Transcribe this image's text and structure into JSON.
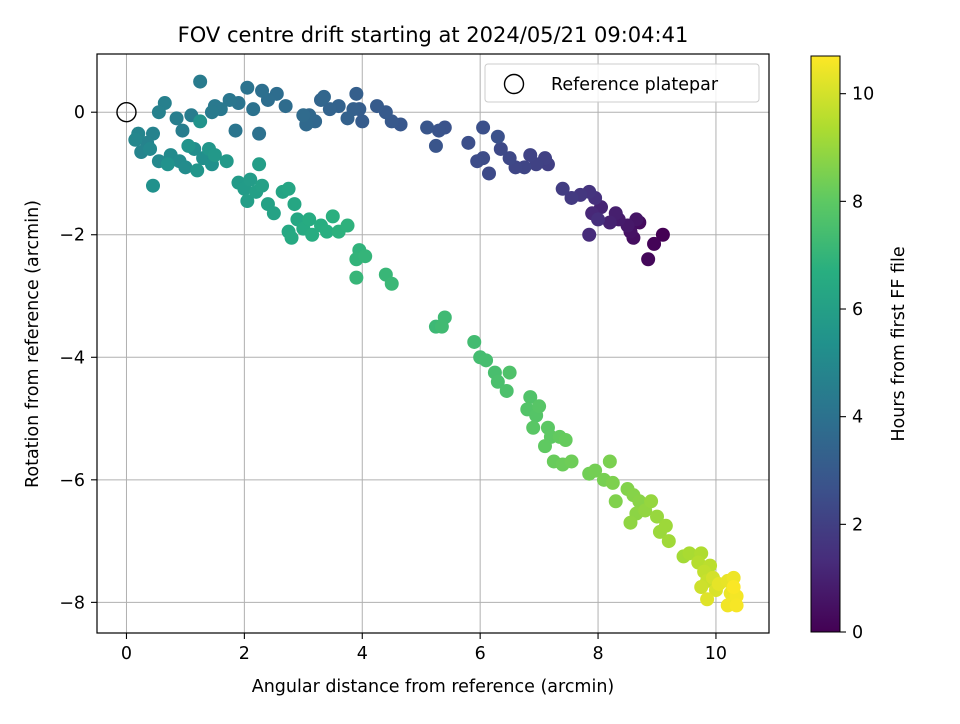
{
  "chart_data": {
    "type": "scatter",
    "title": "FOV centre drift starting at 2024/05/21 09:04:41",
    "xlabel": "Angular distance from reference (arcmin)",
    "ylabel": "Rotation from reference (arcmin)",
    "xlim": [
      -0.5,
      10.9
    ],
    "ylim": [
      -8.5,
      0.95
    ],
    "xticks": [
      0,
      2,
      4,
      6,
      8,
      10
    ],
    "yticks": [
      0,
      -2,
      -4,
      -6,
      -8
    ],
    "grid": true,
    "legend": {
      "location": "upper-right",
      "entries": [
        "Reference platepar"
      ]
    },
    "reference_point": {
      "x": 0,
      "y": 0,
      "label": "Reference platepar"
    },
    "colorbar": {
      "label": "Hours from first FF file",
      "colormap": "viridis",
      "range": [
        0,
        10.7
      ],
      "ticks": [
        0,
        2,
        4,
        6,
        8,
        10
      ]
    },
    "series": [
      {
        "points": [
          [
            9.1,
            -2.0,
            0.0
          ],
          [
            8.95,
            -2.15,
            0.1
          ],
          [
            8.85,
            -2.4,
            0.2
          ],
          [
            8.7,
            -1.8,
            0.3
          ],
          [
            8.6,
            -2.05,
            0.4
          ],
          [
            8.55,
            -1.95,
            0.5
          ],
          [
            8.65,
            -1.75,
            0.6
          ],
          [
            8.5,
            -1.85,
            0.7
          ],
          [
            8.35,
            -1.75,
            0.8
          ],
          [
            8.3,
            -1.65,
            0.9
          ],
          [
            8.2,
            -1.8,
            1.0
          ],
          [
            8.05,
            -1.55,
            1.1
          ],
          [
            7.9,
            -1.65,
            1.2
          ],
          [
            7.85,
            -2.0,
            1.3
          ],
          [
            8.0,
            -1.75,
            1.4
          ],
          [
            7.95,
            -1.4,
            1.5
          ],
          [
            7.85,
            -1.3,
            1.6
          ],
          [
            7.7,
            -1.35,
            1.7
          ],
          [
            7.55,
            -1.4,
            1.8
          ],
          [
            7.4,
            -1.25,
            1.9
          ],
          [
            7.15,
            -0.85,
            2.0
          ],
          [
            7.1,
            -0.75,
            2.05
          ],
          [
            6.95,
            -0.85,
            2.1
          ],
          [
            6.85,
            -0.7,
            2.15
          ],
          [
            6.75,
            -0.9,
            2.2
          ],
          [
            6.6,
            -0.9,
            2.25
          ],
          [
            6.5,
            -0.75,
            2.3
          ],
          [
            6.35,
            -0.6,
            2.35
          ],
          [
            6.15,
            -1.0,
            2.4
          ],
          [
            6.05,
            -0.75,
            2.45
          ],
          [
            5.95,
            -0.8,
            2.5
          ],
          [
            5.8,
            -0.5,
            2.55
          ],
          [
            6.05,
            -0.25,
            2.6
          ],
          [
            6.3,
            -0.4,
            2.65
          ],
          [
            5.4,
            -0.25,
            2.7
          ],
          [
            5.3,
            -0.3,
            2.75
          ],
          [
            5.25,
            -0.55,
            2.8
          ],
          [
            5.1,
            -0.25,
            2.85
          ],
          [
            4.65,
            -0.2,
            2.9
          ],
          [
            4.5,
            -0.15,
            2.95
          ],
          [
            4.4,
            0.0,
            3.0
          ],
          [
            4.25,
            0.1,
            3.05
          ],
          [
            4.0,
            -0.15,
            3.1
          ],
          [
            3.95,
            0.05,
            3.15
          ],
          [
            3.9,
            0.3,
            3.2
          ],
          [
            3.85,
            0.05,
            3.25
          ],
          [
            3.75,
            -0.1,
            3.3
          ],
          [
            3.6,
            0.1,
            3.35
          ],
          [
            3.45,
            0.05,
            3.4
          ],
          [
            3.3,
            0.2,
            3.45
          ],
          [
            3.35,
            0.25,
            3.5
          ],
          [
            3.2,
            -0.15,
            3.55
          ],
          [
            3.1,
            -0.05,
            3.6
          ],
          [
            3.05,
            -0.2,
            3.65
          ],
          [
            3.0,
            -0.05,
            3.7
          ],
          [
            2.7,
            0.1,
            3.75
          ],
          [
            2.55,
            0.3,
            3.8
          ],
          [
            2.4,
            0.2,
            3.85
          ],
          [
            2.3,
            0.35,
            3.9
          ],
          [
            2.25,
            -0.35,
            3.95
          ],
          [
            2.15,
            0.05,
            4.0
          ],
          [
            2.05,
            0.4,
            4.05
          ],
          [
            1.9,
            0.15,
            4.1
          ],
          [
            1.85,
            -0.3,
            4.15
          ],
          [
            1.75,
            0.2,
            4.2
          ],
          [
            1.6,
            0.05,
            4.25
          ],
          [
            1.5,
            0.1,
            4.3
          ],
          [
            1.45,
            0.0,
            4.35
          ],
          [
            1.25,
            0.5,
            4.4
          ],
          [
            1.1,
            -0.05,
            4.45
          ],
          [
            0.95,
            -0.3,
            4.5
          ],
          [
            0.85,
            -0.1,
            4.55
          ],
          [
            0.65,
            0.15,
            4.6
          ],
          [
            0.55,
            0.0,
            4.65
          ],
          [
            0.45,
            -0.35,
            4.7
          ],
          [
            0.35,
            -0.5,
            4.75
          ],
          [
            0.25,
            -0.65,
            4.8
          ],
          [
            0.2,
            -0.35,
            4.85
          ],
          [
            0.15,
            -0.45,
            4.9
          ],
          [
            0.4,
            -0.6,
            4.95
          ],
          [
            0.55,
            -0.8,
            5.0
          ],
          [
            0.75,
            -0.7,
            5.05
          ],
          [
            0.9,
            -0.8,
            5.1
          ],
          [
            1.0,
            -0.9,
            5.15
          ],
          [
            1.15,
            -0.6,
            5.2
          ],
          [
            1.3,
            -0.75,
            5.25
          ],
          [
            1.45,
            -0.85,
            5.3
          ],
          [
            0.45,
            -1.2,
            5.35
          ],
          [
            0.7,
            -0.85,
            5.4
          ],
          [
            1.25,
            -0.15,
            5.45
          ],
          [
            1.05,
            -0.55,
            5.5
          ],
          [
            1.2,
            -0.95,
            5.55
          ],
          [
            1.4,
            -0.6,
            5.6
          ],
          [
            1.5,
            -0.7,
            5.65
          ],
          [
            1.7,
            -0.8,
            5.7
          ],
          [
            1.9,
            -1.15,
            5.75
          ],
          [
            2.0,
            -1.25,
            5.8
          ],
          [
            2.1,
            -1.1,
            5.85
          ],
          [
            2.25,
            -0.85,
            5.9
          ],
          [
            2.05,
            -1.45,
            5.95
          ],
          [
            2.2,
            -1.3,
            6.0
          ],
          [
            2.3,
            -1.2,
            6.05
          ],
          [
            2.4,
            -1.5,
            6.1
          ],
          [
            2.5,
            -1.65,
            6.15
          ],
          [
            2.65,
            -1.3,
            6.2
          ],
          [
            2.75,
            -1.25,
            6.25
          ],
          [
            2.85,
            -1.5,
            6.3
          ],
          [
            2.9,
            -1.75,
            6.35
          ],
          [
            2.75,
            -1.95,
            6.4
          ],
          [
            2.8,
            -2.05,
            6.45
          ],
          [
            3.0,
            -1.9,
            6.5
          ],
          [
            3.1,
            -1.75,
            6.55
          ],
          [
            3.15,
            -2.0,
            6.6
          ],
          [
            3.3,
            -1.85,
            6.65
          ],
          [
            3.4,
            -1.95,
            6.7
          ],
          [
            3.5,
            -1.7,
            6.75
          ],
          [
            3.6,
            -1.95,
            6.8
          ],
          [
            3.75,
            -1.85,
            6.85
          ],
          [
            3.95,
            -2.25,
            6.9
          ],
          [
            3.9,
            -2.4,
            6.95
          ],
          [
            4.05,
            -2.35,
            7.0
          ],
          [
            3.9,
            -2.7,
            7.05
          ],
          [
            4.4,
            -2.65,
            7.1
          ],
          [
            4.5,
            -2.8,
            7.15
          ],
          [
            5.25,
            -3.5,
            7.2
          ],
          [
            5.4,
            -3.35,
            7.25
          ],
          [
            5.35,
            -3.5,
            7.3
          ],
          [
            5.9,
            -3.75,
            7.35
          ],
          [
            6.0,
            -4.0,
            7.4
          ],
          [
            6.1,
            -4.05,
            7.45
          ],
          [
            6.25,
            -4.25,
            7.5
          ],
          [
            6.3,
            -4.4,
            7.55
          ],
          [
            6.45,
            -4.55,
            7.6
          ],
          [
            6.5,
            -4.25,
            7.65
          ],
          [
            6.85,
            -4.65,
            7.7
          ],
          [
            6.8,
            -4.85,
            7.75
          ],
          [
            6.95,
            -4.95,
            7.8
          ],
          [
            7.0,
            -4.8,
            7.85
          ],
          [
            6.9,
            -5.15,
            7.9
          ],
          [
            7.15,
            -5.15,
            7.95
          ],
          [
            7.2,
            -5.3,
            8.0
          ],
          [
            7.1,
            -5.45,
            8.05
          ],
          [
            7.35,
            -5.3,
            8.1
          ],
          [
            7.45,
            -5.35,
            8.15
          ],
          [
            7.25,
            -5.7,
            8.2
          ],
          [
            7.4,
            -5.75,
            8.25
          ],
          [
            7.55,
            -5.7,
            8.3
          ],
          [
            7.85,
            -5.9,
            8.35
          ],
          [
            7.95,
            -5.85,
            8.4
          ],
          [
            8.1,
            -6.0,
            8.45
          ],
          [
            8.2,
            -5.7,
            8.5
          ],
          [
            8.25,
            -6.05,
            8.55
          ],
          [
            8.3,
            -6.35,
            8.6
          ],
          [
            8.5,
            -6.15,
            8.65
          ],
          [
            8.6,
            -6.25,
            8.7
          ],
          [
            8.7,
            -6.35,
            8.75
          ],
          [
            8.65,
            -6.55,
            8.8
          ],
          [
            8.55,
            -6.7,
            8.85
          ],
          [
            8.8,
            -6.5,
            8.9
          ],
          [
            8.9,
            -6.35,
            8.95
          ],
          [
            9.0,
            -6.6,
            9.0
          ],
          [
            9.05,
            -6.85,
            9.05
          ],
          [
            9.15,
            -6.75,
            9.1
          ],
          [
            9.2,
            -7.0,
            9.15
          ],
          [
            9.45,
            -7.25,
            9.2
          ],
          [
            9.55,
            -7.2,
            9.3
          ],
          [
            9.75,
            -7.2,
            9.4
          ],
          [
            9.7,
            -7.35,
            9.5
          ],
          [
            9.9,
            -7.4,
            9.6
          ],
          [
            9.8,
            -7.5,
            9.7
          ],
          [
            9.85,
            -7.65,
            9.8
          ],
          [
            9.75,
            -7.75,
            9.9
          ],
          [
            9.95,
            -7.6,
            10.0
          ],
          [
            10.0,
            -7.8,
            10.1
          ],
          [
            9.85,
            -7.95,
            10.2
          ],
          [
            10.05,
            -7.7,
            10.3
          ],
          [
            10.2,
            -7.65,
            10.35
          ],
          [
            10.25,
            -7.85,
            10.4
          ],
          [
            10.3,
            -7.6,
            10.45
          ],
          [
            10.2,
            -8.05,
            10.5
          ],
          [
            10.35,
            -7.9,
            10.55
          ],
          [
            10.35,
            -8.05,
            10.6
          ],
          [
            10.3,
            -7.75,
            10.65
          ]
        ]
      }
    ]
  }
}
